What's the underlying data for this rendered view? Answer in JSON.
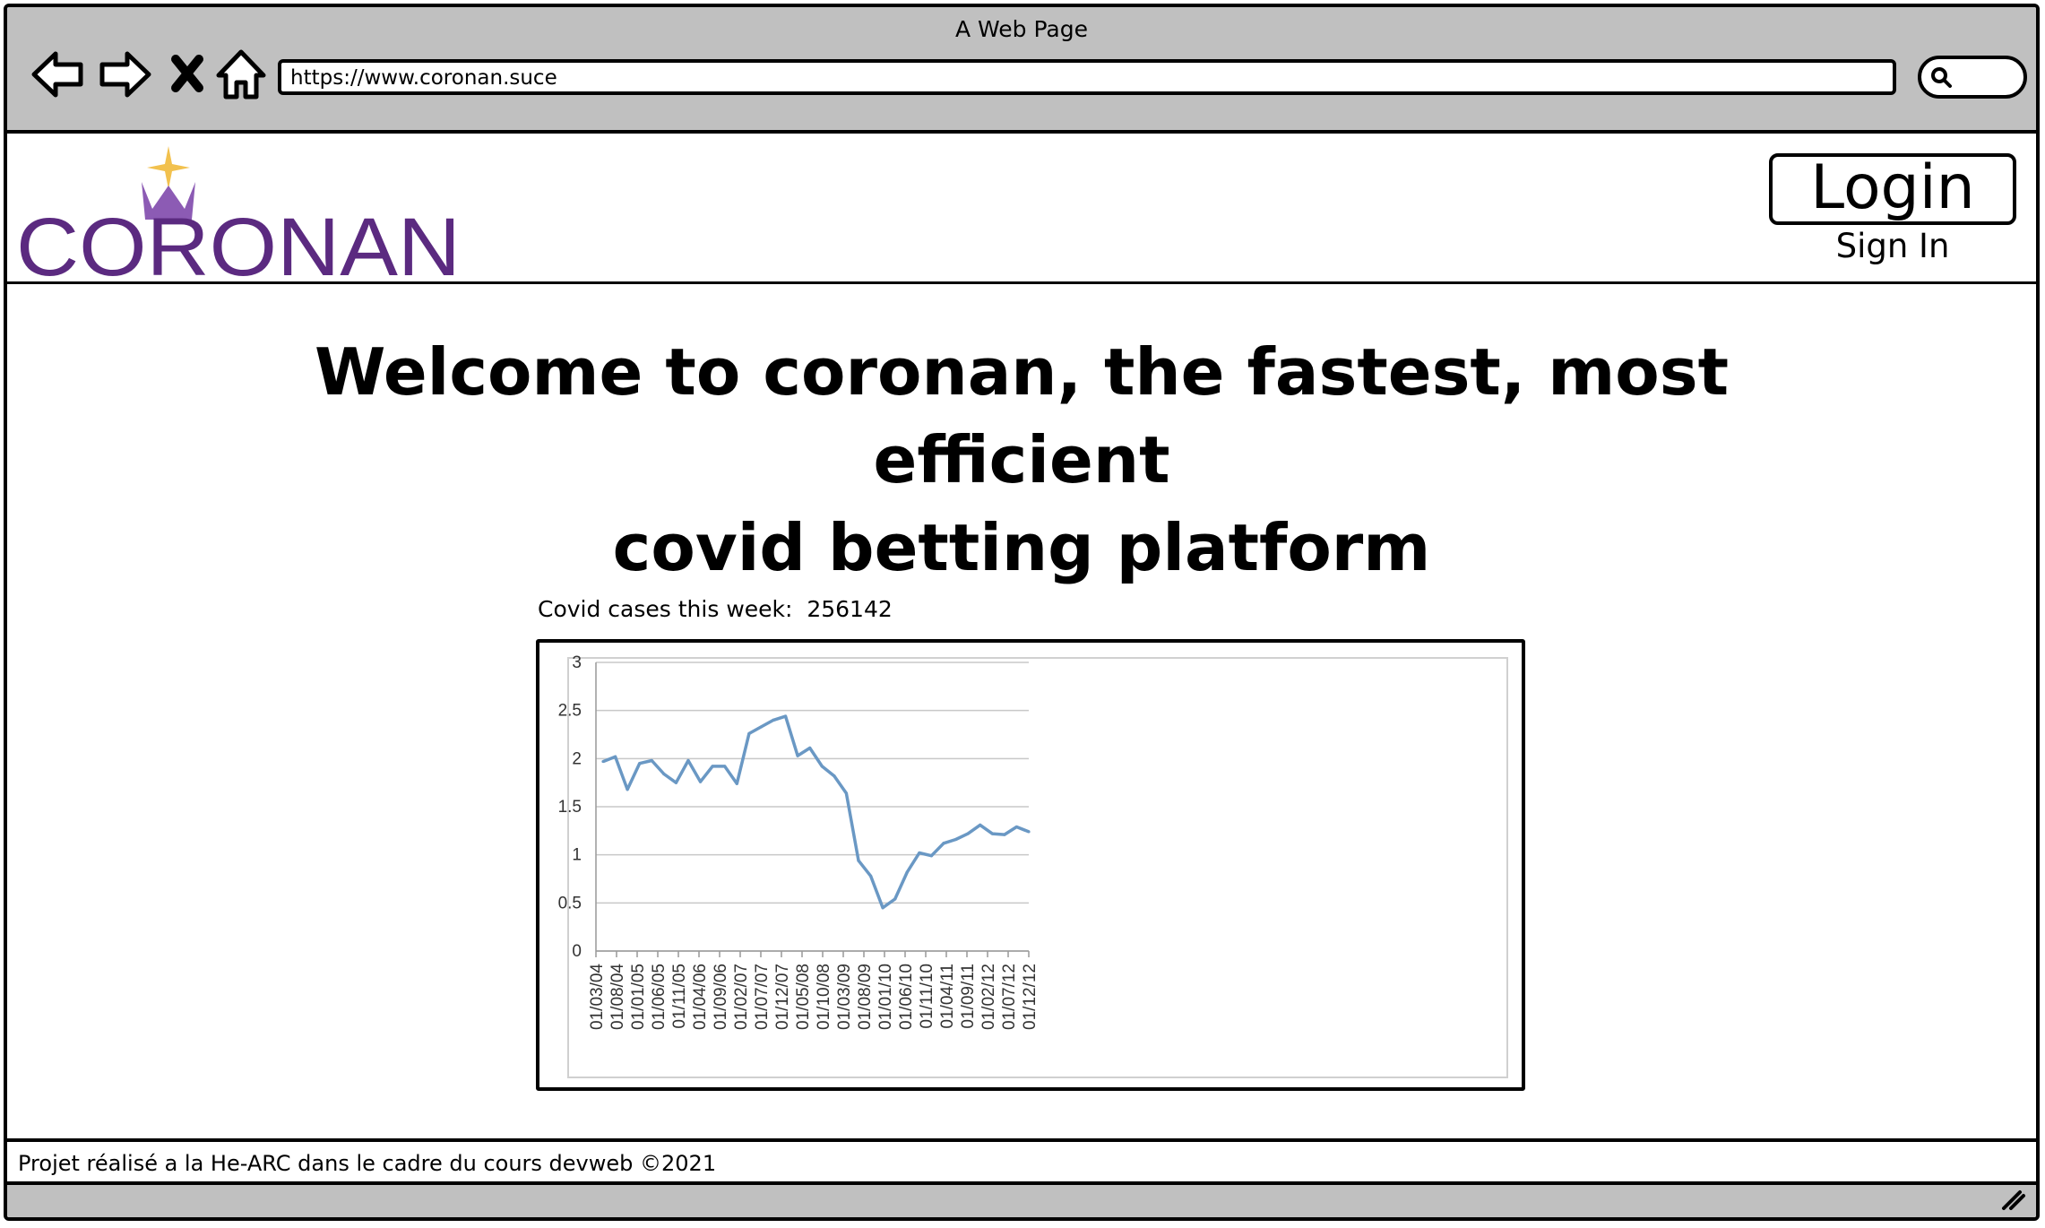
{
  "window": {
    "title": "A Web Page"
  },
  "browser": {
    "url": "https://www.coronan.suce",
    "icons": [
      "back-arrow-icon",
      "forward-arrow-icon",
      "close-icon",
      "home-icon",
      "search-icon"
    ]
  },
  "header": {
    "logo_text": "CORONAN",
    "login_label": "Login",
    "signin_label": "Sign In"
  },
  "main": {
    "welcome_line1": "Welcome to coronan, the fastest, most efficient",
    "welcome_line2": "covid betting platform",
    "cases_label": "Covid cases this week:",
    "cases_value": "256142"
  },
  "chart_data": {
    "type": "line",
    "title": "",
    "xlabel": "",
    "ylabel": "",
    "ylim": [
      0,
      3
    ],
    "yticks": [
      "0",
      "0.5",
      "1",
      "1.5",
      "2",
      "2.5",
      "3"
    ],
    "grid": true,
    "line_color": "#6a98c4",
    "tick_labels": [
      "01/03/04",
      "01/08/04",
      "01/01/05",
      "01/06/05",
      "01/11/05",
      "01/04/06",
      "01/09/06",
      "01/02/07",
      "01/07/07",
      "01/12/07",
      "01/05/08",
      "01/10/08",
      "01/03/09",
      "01/08/09",
      "01/01/10",
      "01/06/10",
      "01/11/10",
      "01/04/11",
      "01/09/11",
      "01/02/12",
      "01/07/12",
      "01/12/12"
    ],
    "values": [
      1.97,
      2.02,
      1.68,
      1.95,
      1.98,
      1.84,
      1.75,
      1.98,
      1.76,
      1.92,
      1.92,
      1.74,
      2.26,
      2.33,
      2.4,
      2.44,
      2.03,
      2.11,
      1.92,
      1.82,
      1.64,
      0.94,
      0.78,
      0.45,
      0.54,
      0.82,
      1.02,
      0.99,
      1.12,
      1.16,
      1.22,
      1.31,
      1.22,
      1.21,
      1.29,
      1.24
    ]
  },
  "footer": {
    "text": "Projet réalisé a la He-ARC dans le cadre du cours devweb ©2021"
  },
  "colors": {
    "chrome": "#c0c0c0",
    "logo_purple": "#5b2a80",
    "crown_purple": "#8c5bb4",
    "star_gold": "#f2c14e"
  }
}
